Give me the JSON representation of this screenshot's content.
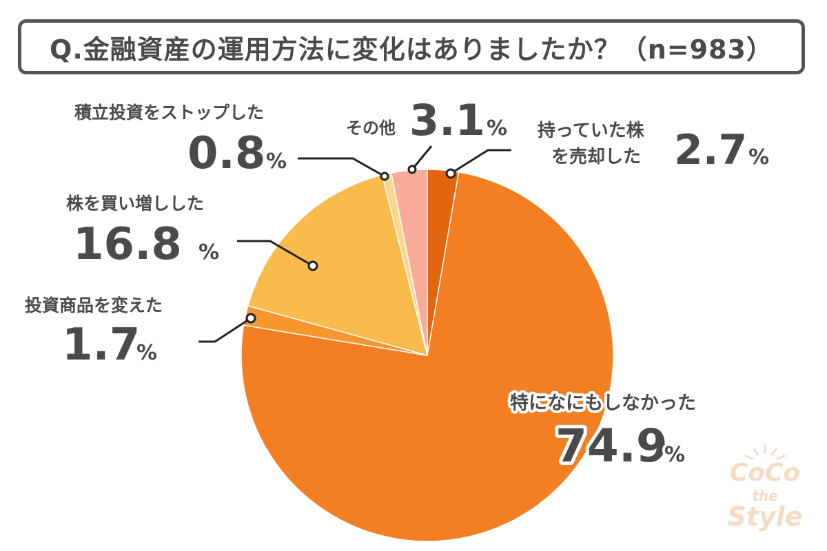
{
  "title": "Q.金融資産の運用方法に変化はありましたか？（n=983）",
  "chart_data": {
    "type": "pie",
    "title": "Q.金融資産の運用方法に変化はありましたか？（n=983）",
    "unit": "%",
    "start": "12 o'clock",
    "direction": "clockwise",
    "slices": [
      {
        "label": "持っていた株\nを売却した",
        "value": 2.7,
        "color": "#e2650f"
      },
      {
        "label": "特になにもしなかった",
        "value": 74.9,
        "color": "#f47f22"
      },
      {
        "label": "投資商品を変えた",
        "value": 1.7,
        "color": "#f7962c"
      },
      {
        "label": "株を買い増しした",
        "value": 16.8,
        "color": "#f9bc4c"
      },
      {
        "label": "積立投資をストップした",
        "value": 0.8,
        "color": "#fbd68e"
      },
      {
        "label": "その他",
        "value": 3.1,
        "color": "#f8ab99"
      }
    ]
  },
  "labels": {
    "sell": {
      "line1": "持っていた株",
      "line2": "を売却した",
      "value": "2.7",
      "pct": "%"
    },
    "nothing": {
      "name": "特になにもしなかった",
      "value": "74.9",
      "pct": "%"
    },
    "change": {
      "name": "投資商品を変えた",
      "value": "1.7",
      "pct": "%"
    },
    "buy": {
      "name": "株を買い増しした",
      "value": "16.8",
      "pct": "%"
    },
    "stop": {
      "name": "積立投資をストップした",
      "value": "0.8",
      "pct": "%"
    },
    "other": {
      "name": "その他",
      "value": "3.1",
      "pct": "%"
    }
  },
  "watermark": {
    "line1": "CoCo",
    "line2": "the",
    "line3": "Style"
  }
}
